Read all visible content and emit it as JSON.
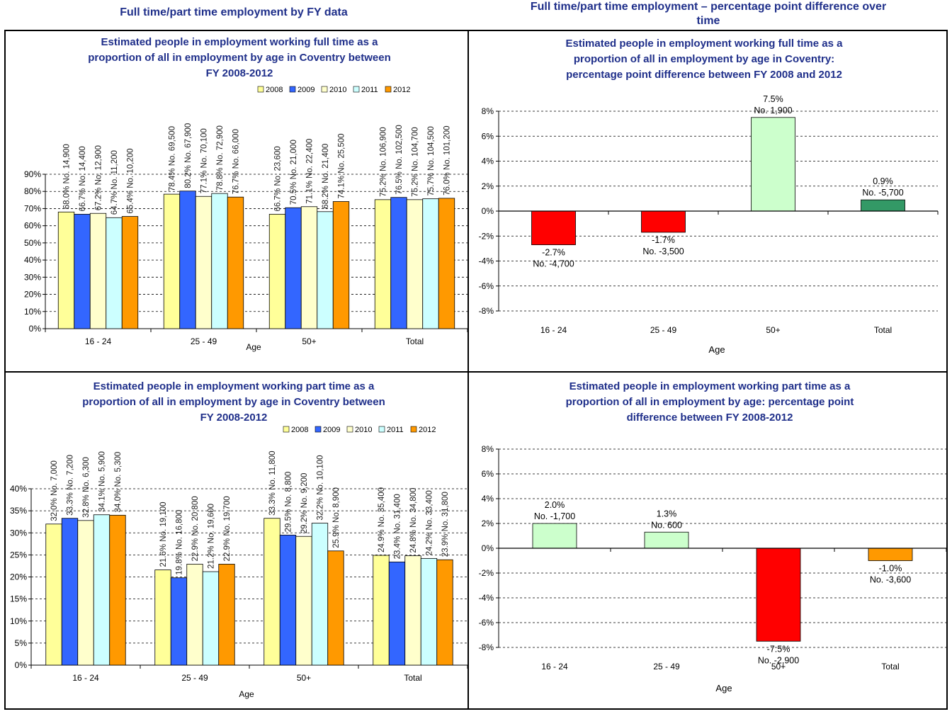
{
  "headers": {
    "left": "Full time/part time employment by FY data",
    "right_line1": "Full time/part time employment  – percentage point difference over",
    "right_line2": "time"
  },
  "colors": {
    "title": "#1f2f8a",
    "2008": "#ffff99",
    "2009": "#3366ff",
    "2010": "#ffffcc",
    "2011": "#ccffff",
    "2012": "#ff9900",
    "pos_light": "#ccffcc",
    "pos_dark": "#339966",
    "neg_red": "#ff0000",
    "neg_orange": "#ff9900"
  },
  "chart_data": [
    {
      "type": "bar",
      "title_lines": [
        "Estimated people in employment working full time as a",
        "proportion of all in employment by age in Coventry between",
        "FY 2008-2012"
      ],
      "xlabel": "Age",
      "categories": [
        "16 - 24",
        "25 - 49",
        "50+",
        "Total"
      ],
      "ylim": [
        0,
        90
      ],
      "yticks": [
        "0%",
        "10%",
        "20%",
        "30%",
        "40%",
        "50%",
        "60%",
        "70%",
        "80%",
        "90%"
      ],
      "legend_position": "top-right",
      "series": [
        {
          "name": "2008",
          "values": [
            68.0,
            78.4,
            66.7,
            75.2
          ],
          "labels": [
            "68.0% No. 14,900",
            "78.4% No. 69,500",
            "66.7% No. 23,600",
            "75.2% No. 106,900"
          ]
        },
        {
          "name": "2009",
          "values": [
            66.7,
            80.2,
            70.5,
            76.5
          ],
          "labels": [
            "66.7% No. 14,400",
            "80.2% No. 67,900",
            "70.5% No. 21,000",
            "76.5% No. 102,500"
          ]
        },
        {
          "name": "2010",
          "values": [
            67.2,
            77.1,
            71.1,
            75.2
          ],
          "labels": [
            "67.2% No. 12,900",
            "77.1% No. 70,100",
            "71.1% No. 22,400",
            "75.2% No. 104,700"
          ]
        },
        {
          "name": "2011",
          "values": [
            64.7,
            78.8,
            68.2,
            75.7
          ],
          "labels": [
            "64.7% No. 11,200",
            "78.8% No. 72,900",
            "68.2% No. 21,400",
            "75.7% No. 104,500"
          ]
        },
        {
          "name": "2012",
          "values": [
            65.4,
            76.7,
            74.1,
            76.0
          ],
          "labels": [
            "65.4% No. 10,200",
            "76.7% No. 66,000",
            "74.1% No. 25,500",
            "76.0% No. 101,200"
          ]
        }
      ]
    },
    {
      "type": "bar",
      "title_lines": [
        "Estimated people in employment working full time as a",
        "proportion of all in employment by age in Coventry:",
        "percentage point difference between FY 2008 and 2012"
      ],
      "xlabel": "Age",
      "categories": [
        "16 - 24",
        "25 - 49",
        "50+",
        "Total"
      ],
      "ylim": [
        -8,
        8
      ],
      "yticks": [
        "-8%",
        "-6%",
        "-4%",
        "-2%",
        "0%",
        "2%",
        "4%",
        "6%",
        "8%"
      ],
      "values": [
        -2.7,
        -1.7,
        7.5,
        0.9
      ],
      "colors": [
        "#ff0000",
        "#ff0000",
        "#ccffcc",
        "#339966"
      ],
      "labels": [
        [
          "-2.7%",
          "No. -4,700"
        ],
        [
          "-1.7%",
          "No. -3,500"
        ],
        [
          "7.5%",
          "No. 1,900"
        ],
        [
          "0.9%",
          "No. -5,700"
        ]
      ]
    },
    {
      "type": "bar",
      "title_lines": [
        "Estimated people in employment working part time as a",
        "proportion of all in employment by age in Coventry between",
        "FY 2008-2012"
      ],
      "xlabel": "Age",
      "categories": [
        "16 - 24",
        "25 - 49",
        "50+",
        "Total"
      ],
      "ylim": [
        0,
        40
      ],
      "yticks": [
        "0%",
        "5%",
        "10%",
        "15%",
        "20%",
        "25%",
        "30%",
        "35%",
        "40%"
      ],
      "legend_position": "top-right",
      "series": [
        {
          "name": "2008",
          "values": [
            32.0,
            21.6,
            33.3,
            24.9
          ],
          "labels": [
            "32.0% No. 7,000",
            "21.6% No. 19,100",
            "33.3% No. 11,800",
            "24.9% No. 35,400"
          ]
        },
        {
          "name": "2009",
          "values": [
            33.3,
            19.8,
            29.5,
            23.4
          ],
          "labels": [
            "33.3% No. 7,200",
            "19.8% No. 16,800",
            "29.5% No. 8,800",
            "23.4% No. 31,400"
          ]
        },
        {
          "name": "2010",
          "values": [
            32.8,
            22.9,
            29.2,
            24.8
          ],
          "labels": [
            "32.8% No. 6,300",
            "22.9% No. 20,800",
            "29.2% No. 9,200",
            "24.8% No. 34,800"
          ]
        },
        {
          "name": "2011",
          "values": [
            34.1,
            21.2,
            32.2,
            24.2
          ],
          "labels": [
            "34.1% No. 5,900",
            "21.2% No. 19,600",
            "32.2% No. 10,100",
            "24.2% No. 33,400"
          ]
        },
        {
          "name": "2012",
          "values": [
            34.0,
            22.9,
            25.9,
            23.9
          ],
          "labels": [
            "34.0% No. 5,300",
            "22.9% No. 19,700",
            "25.9% No. 8,900",
            "23.9% No. 31,800"
          ]
        }
      ]
    },
    {
      "type": "bar",
      "title_lines": [
        "Estimated people in employment working part time as a",
        "proportion of all in employment by age: percentage point",
        "difference between FY 2008-2012"
      ],
      "xlabel": "Age",
      "categories": [
        "16 - 24",
        "25 - 49",
        "50+",
        "Total"
      ],
      "ylim": [
        -8,
        8
      ],
      "yticks": [
        "-8%",
        "-6%",
        "-4%",
        "-2%",
        "0%",
        "2%",
        "4%",
        "6%",
        "8%"
      ],
      "values": [
        2.0,
        1.3,
        -7.5,
        -1.0
      ],
      "colors": [
        "#ccffcc",
        "#ccffcc",
        "#ff0000",
        "#ff9900"
      ],
      "labels": [
        [
          "2.0%",
          "No. -1,700"
        ],
        [
          "1.3%",
          "No. 600"
        ],
        [
          "-7.5%",
          "No. -2,900"
        ],
        [
          "-1.0%",
          "No. -3,600"
        ]
      ]
    }
  ]
}
